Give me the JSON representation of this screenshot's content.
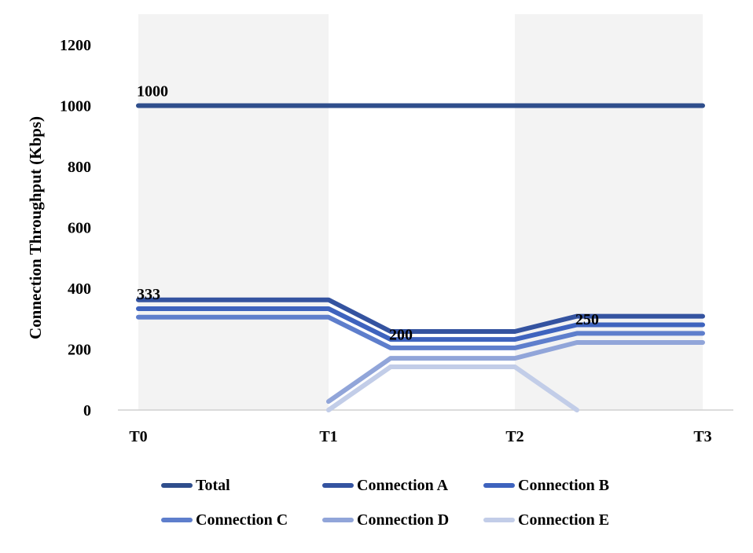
{
  "chart_data": {
    "type": "line",
    "x": [
      "T0",
      "T1",
      "",
      "T2",
      "",
      "T3"
    ],
    "ylabel": "Connection Throughput (Kbps)",
    "ylim": [
      0,
      1200
    ],
    "yticks": [
      0,
      200,
      400,
      600,
      800,
      1000,
      1200
    ],
    "xticks": [
      "T0",
      "T1",
      "T2",
      "T3"
    ],
    "shaded_periods": [
      [
        "T0",
        "T1"
      ],
      [
        "T2",
        "T3"
      ]
    ],
    "series": [
      {
        "name": "Total",
        "color": "#2F4E8C",
        "values": [
          1000,
          1000,
          1000,
          1000,
          1000,
          1000
        ]
      },
      {
        "name": "Connection A",
        "color": "#3453A0",
        "values": [
          362,
          362,
          258,
          258,
          308,
          308
        ]
      },
      {
        "name": "Connection B",
        "color": "#3E63BE",
        "values": [
          333,
          333,
          232,
          232,
          280,
          280
        ]
      },
      {
        "name": "Connection C",
        "color": "#5E7ECC",
        "values": [
          305,
          305,
          204,
          204,
          252,
          252
        ]
      },
      {
        "name": "Connection D",
        "color": "#91A5D9",
        "values": [
          null,
          28,
          170,
          170,
          222,
          222
        ]
      },
      {
        "name": "Connection E",
        "color": "#C2CDE8",
        "values": [
          null,
          0,
          142,
          142,
          0,
          null
        ]
      }
    ],
    "annotations": [
      {
        "text": "1000",
        "x": "T0",
        "y": 1000
      },
      {
        "text": "333",
        "x": "T0",
        "y": 333
      },
      {
        "text": "200",
        "x": 2,
        "y": 200
      },
      {
        "text": "250",
        "x": 4,
        "y": 250
      }
    ],
    "grid": false,
    "legend_position": "bottom"
  }
}
